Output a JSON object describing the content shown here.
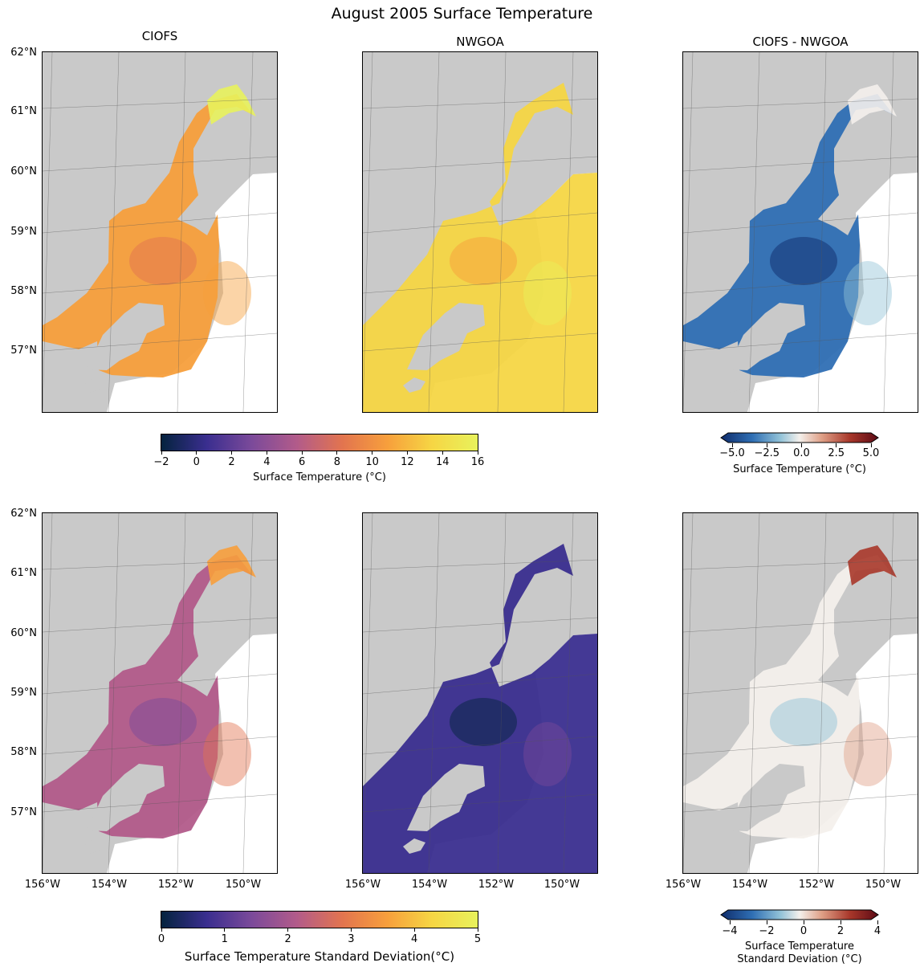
{
  "figure": {
    "title": "August 2005 Surface Temperature"
  },
  "columns": [
    "CIOFS",
    "NWGOA",
    "CIOFS - NWGOA"
  ],
  "lat_labels": [
    "62°N",
    "61°N",
    "60°N",
    "59°N",
    "58°N",
    "57°N"
  ],
  "lon_labels": [
    "156°W",
    "154°W",
    "152°W",
    "150°W"
  ],
  "rows": [
    {
      "name": "mean",
      "panels": [
        {
          "model": "CIOFS",
          "palette": "thermal",
          "level": 0.68
        },
        {
          "model": "NWGOA",
          "palette": "thermal",
          "level": 0.86
        },
        {
          "model": "CIOFS - NWGOA",
          "palette": "diverging",
          "level": 0.2
        }
      ]
    },
    {
      "name": "std",
      "panels": [
        {
          "model": "CIOFS",
          "palette": "thermal",
          "level": 0.4
        },
        {
          "model": "NWGOA",
          "palette": "thermal",
          "level": 0.2
        },
        {
          "model": "CIOFS - NWGOA",
          "palette": "diverging",
          "level": 0.55
        }
      ]
    }
  ],
  "colorbars": {
    "mean_abs": {
      "ticks": [
        "−2",
        "0",
        "2",
        "4",
        "6",
        "8",
        "10",
        "12",
        "14",
        "16"
      ],
      "label": "Surface Temperature (°C)"
    },
    "mean_diff": {
      "ticks": [
        "−5.0",
        "−2.5",
        "0.0",
        "2.5",
        "5.0"
      ],
      "label": "Surface Temperature (°C)"
    },
    "std_abs": {
      "ticks": [
        "0",
        "1",
        "2",
        "3",
        "4",
        "5"
      ],
      "label": "Surface Temperature Standard Deviation(°C)"
    },
    "std_diff": {
      "ticks": [
        "−4",
        "−2",
        "0",
        "2",
        "4"
      ],
      "label_line1": "Surface Temperature",
      "label_line2": "Standard Deviation (°C)"
    }
  },
  "colors": {
    "land": "#c9c9c9",
    "thermal_scale": [
      "#04233e",
      "#3a2e8f",
      "#7b4a9a",
      "#b25b8a",
      "#e2744f",
      "#f79f3c",
      "#f6d644",
      "#e8f25c"
    ],
    "diverging_scale": [
      "#0f2c6b",
      "#2f6fb4",
      "#93c3d8",
      "#f4f0ec",
      "#dfa087",
      "#a8372a",
      "#5c0a15"
    ],
    "grid": "#555555"
  }
}
